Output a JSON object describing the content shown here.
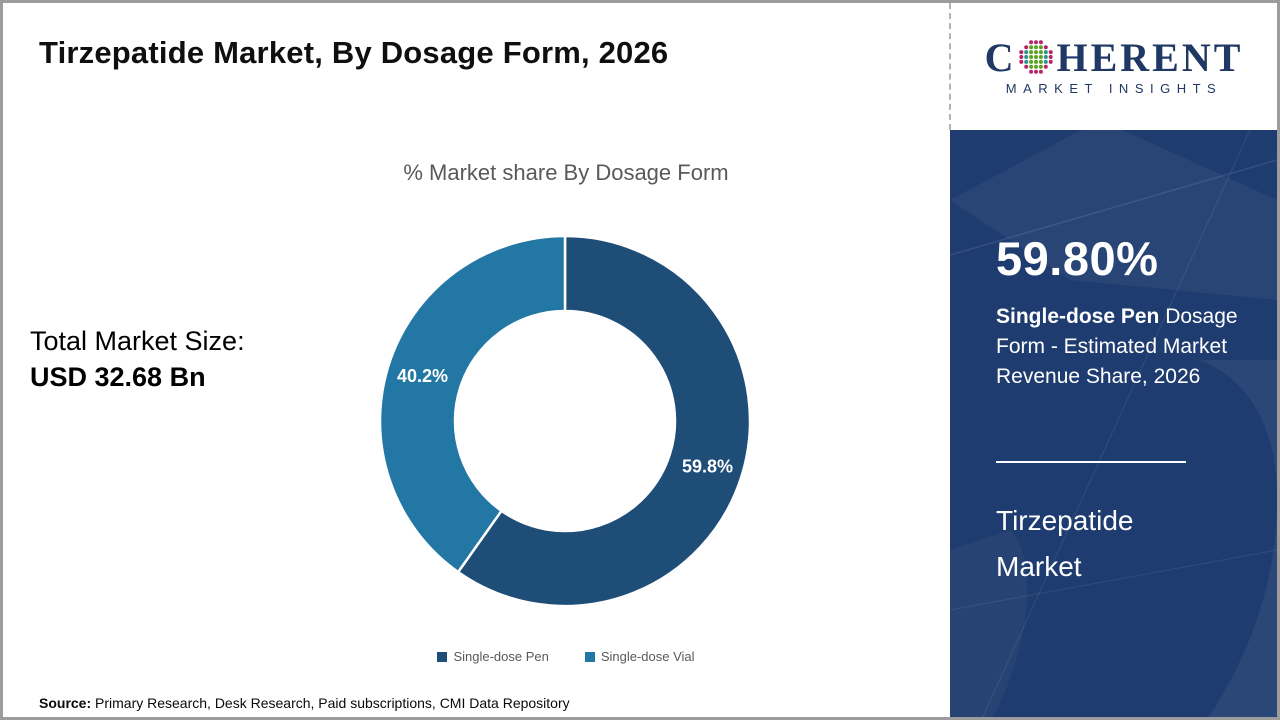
{
  "header": {
    "title": "Tirzepatide Market, By Dosage Form, 2026"
  },
  "logo": {
    "word_start": "C",
    "word_end": "HERENT",
    "subtitle": "MARKET INSIGHTS",
    "navy": "#1f3864",
    "dot_green": "#5aa421",
    "dot_teal": "#2a948f",
    "dot_magenta": "#b72467"
  },
  "left_panel": {
    "total_label": "Total Market Size:",
    "total_value": "USD 32.68 Bn"
  },
  "chart_data": {
    "type": "pie",
    "donut": true,
    "title": "% Market share By Dosage Form",
    "start_at": "top",
    "direction": "clockwise",
    "legend_position": "bottom",
    "segments": [
      {
        "label": "Single-dose Pen",
        "value": 59.8,
        "display": "59.8%",
        "color": "#1e4d78"
      },
      {
        "label": "Single-dose Vial",
        "value": 40.2,
        "display": "40.2%",
        "color": "#2377a4"
      }
    ]
  },
  "sidebar": {
    "background": "#1e3c6f",
    "stat_value": "59.80%",
    "stat_bold": "Single-dose Pen",
    "stat_rest": " Dosage Form - Estimated Market Revenue Share, 2026",
    "market_name": "Tirzepatide Market"
  },
  "footer": {
    "source_label": "Source:",
    "source_text": " Primary Research, Desk Research, Paid subscriptions, CMI Data Repository"
  }
}
